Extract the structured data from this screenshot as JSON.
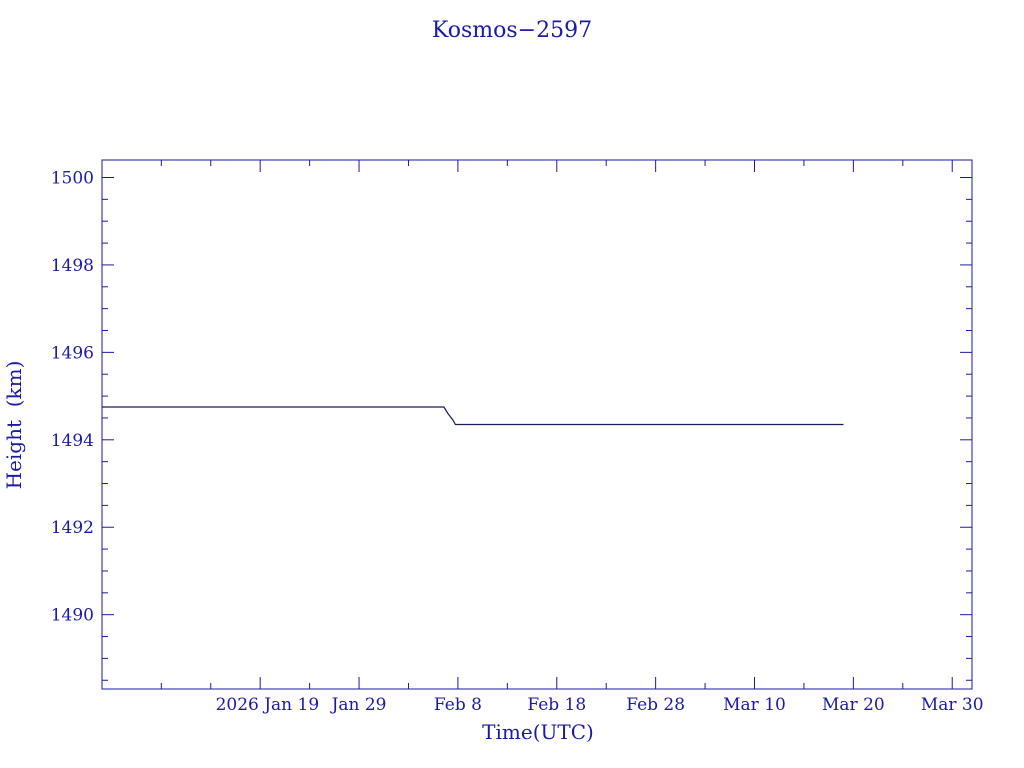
{
  "chart_data": {
    "type": "line",
    "title": "Kosmos−2597",
    "xlabel": "Time(UTC)",
    "ylabel": "Height  (km)",
    "ylim": [
      1488.3,
      1500.4
    ],
    "xlim": [
      "2026-01-03",
      "2026-04-01"
    ],
    "x_tick_labels": [
      "2026 Jan 19",
      "Jan 29",
      "Feb  8",
      "Feb 18",
      "Feb 28",
      "Mar 10",
      "Mar 20",
      "Mar 30"
    ],
    "y_ticks": [
      1490,
      1492,
      1494,
      1496,
      1498,
      1500
    ],
    "grid": false,
    "colors": {
      "axes": "#1a1aa6",
      "line": "#1a1a5e"
    },
    "series": [
      {
        "x": [
          "2026-01-03",
          "2026-02-06 14:00",
          "2026-02-07 00:00",
          "2026-02-07 12:00",
          "2026-02-07 18:00",
          "2026-03-19"
        ],
        "values": [
          1494.75,
          1494.75,
          1494.6,
          1494.45,
          1494.35,
          1494.35
        ]
      }
    ]
  }
}
